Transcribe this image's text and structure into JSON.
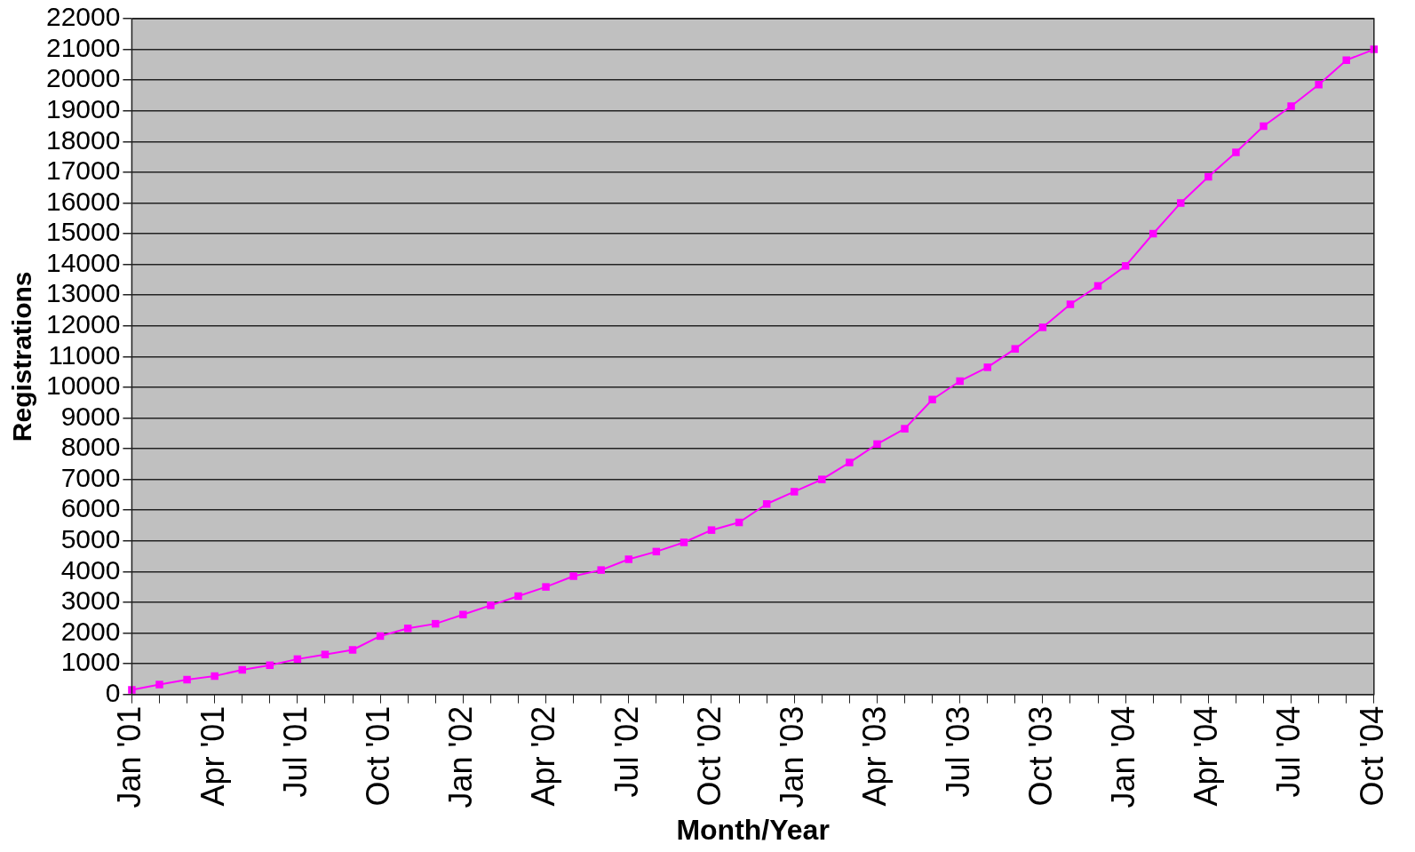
{
  "chart_data": {
    "type": "line",
    "xlabel": "Month/Year",
    "ylabel": "Registrations",
    "categories": [
      "Jan '01",
      null,
      null,
      "Apr '01",
      null,
      null,
      "Jul '01",
      null,
      null,
      "Oct '01",
      null,
      null,
      "Jan '02",
      null,
      null,
      "Apr '02",
      null,
      null,
      "Jul '02",
      null,
      null,
      "Oct '02",
      null,
      null,
      "Jan '03",
      null,
      null,
      "Apr '03",
      null,
      null,
      "Jul '03",
      null,
      null,
      "Oct '03",
      null,
      null,
      "Jan '04",
      null,
      null,
      "Apr '04",
      null,
      null,
      "Jul '04",
      null,
      null,
      "Oct '04"
    ],
    "series": [
      {
        "color": "#ff00ff",
        "values": [
          150,
          320,
          480,
          600,
          800,
          950,
          1150,
          1300,
          1450,
          1900,
          2150,
          2300,
          2600,
          2900,
          3200,
          3500,
          3850,
          4050,
          4400,
          4650,
          4950,
          5350,
          5600,
          6200,
          6600,
          7000,
          7550,
          8150,
          8650,
          9600,
          10200,
          10650,
          11250,
          11950,
          12700,
          13300,
          13950,
          15000,
          16000,
          16850,
          17650,
          18500,
          19150,
          19850,
          20650,
          21000
        ]
      }
    ],
    "ylim": [
      0,
      22000
    ],
    "yticks": [
      0,
      1000,
      2000,
      3000,
      4000,
      5000,
      6000,
      7000,
      8000,
      9000,
      10000,
      11000,
      12000,
      13000,
      14000,
      15000,
      16000,
      17000,
      18000,
      19000,
      20000,
      21000,
      22000
    ],
    "grid": "y",
    "legend": false,
    "marker": "square",
    "line_style": "solid"
  }
}
